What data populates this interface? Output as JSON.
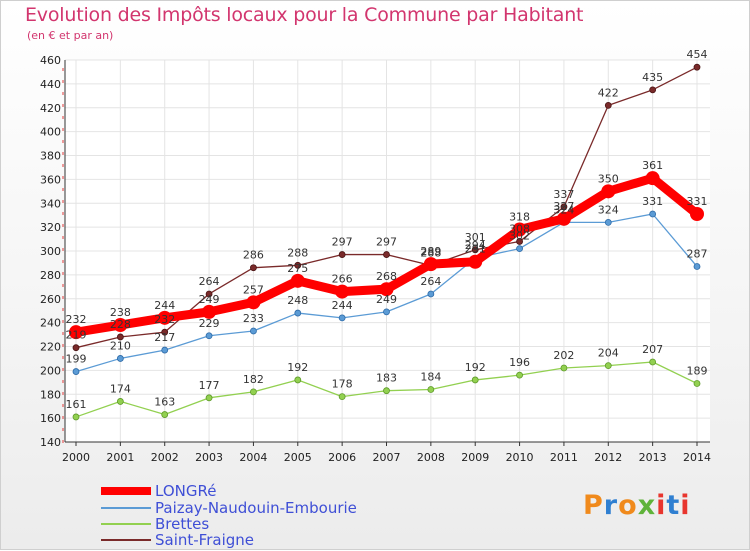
{
  "header": {
    "title": "Evolution des Impôts locaux pour la Commune par Habitant",
    "subtitle": "(en € et par an)"
  },
  "logo": {
    "text": "Proxiti",
    "colors": [
      "#f08a1c",
      "#2f7fd1",
      "#f08a1c",
      "#5fb33a",
      "#e8352e",
      "#2f7fd1",
      "#e8352e"
    ]
  },
  "colors": {
    "LONGRé": "#ff0000",
    "Paizay-Naudouin-Embourie": "#5b9bd5",
    "Brettes": "#92d050",
    "Saint-Fraigne": "#7a2a2a"
  },
  "chart_data": {
    "type": "line",
    "title": "Evolution des Impôts locaux pour la Commune par Habitant",
    "subtitle": "(en € et par an)",
    "x": [
      "2000",
      "2001",
      "2002",
      "2003",
      "2004",
      "2005",
      "2006",
      "2007",
      "2008",
      "2009",
      "2010",
      "2011",
      "2012",
      "2013",
      "2014"
    ],
    "ylim": [
      140,
      460
    ],
    "yticks": [
      140,
      160,
      180,
      200,
      220,
      240,
      260,
      280,
      300,
      320,
      340,
      360,
      380,
      400,
      420,
      440,
      460
    ],
    "grid": true,
    "legend_position": "bottom-left",
    "series": [
      {
        "name": "LONGRé",
        "values": [
          232,
          238,
          244,
          249,
          257,
          275,
          266,
          268,
          289,
          291,
          318,
          327,
          350,
          361,
          331
        ]
      },
      {
        "name": "Paizay-Naudouin-Embourie",
        "values": [
          199,
          210,
          217,
          229,
          233,
          248,
          244,
          249,
          264,
          294,
          302,
          324,
          324,
          331,
          287
        ]
      },
      {
        "name": "Brettes",
        "values": [
          161,
          174,
          163,
          177,
          182,
          192,
          178,
          183,
          184,
          192,
          196,
          202,
          204,
          207,
          189
        ]
      },
      {
        "name": "Saint-Fraigne",
        "values": [
          219,
          228,
          232,
          264,
          286,
          288,
          297,
          297,
          288,
          301,
          308,
          337,
          422,
          435,
          454
        ]
      }
    ]
  }
}
